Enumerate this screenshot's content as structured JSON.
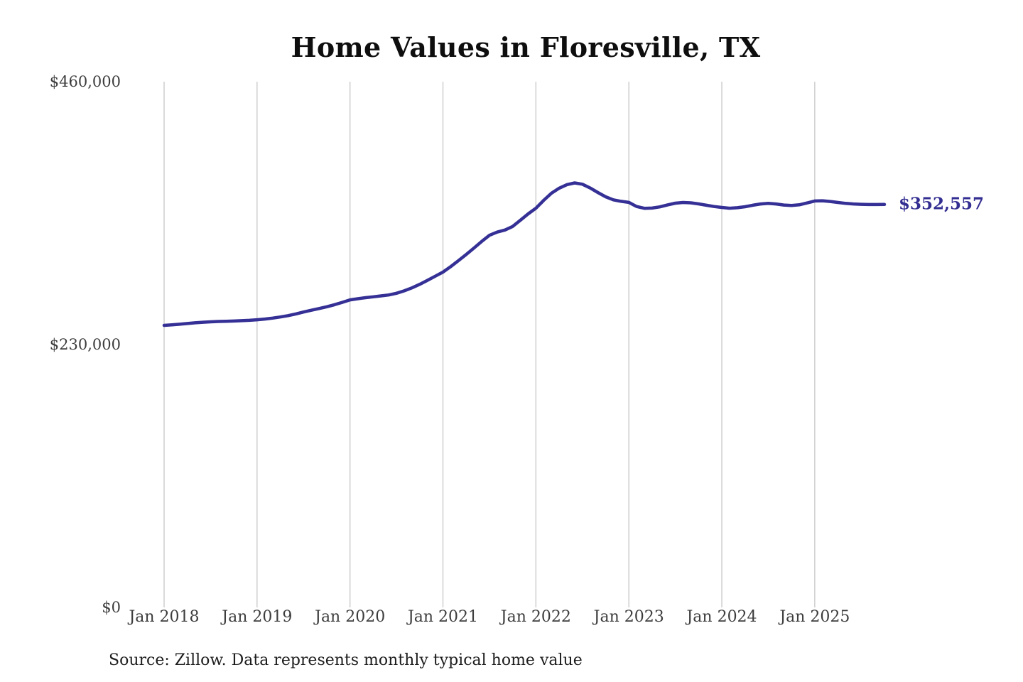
{
  "page": {
    "background": "#ffffff"
  },
  "chart_data": {
    "type": "line",
    "title": "Home Values in Floresville, TX",
    "source": "Source: Zillow. Data represents monthly typical home value",
    "x_frequency": "monthly",
    "x_start": "Jan 2018",
    "x_end": "Oct 2025",
    "x_tick_labels": [
      "Jan 2018",
      "Jan 2019",
      "Jan 2020",
      "Jan 2021",
      "Jan 2022",
      "Jan 2023",
      "Jan 2024",
      "Jan 2025"
    ],
    "y_tick_labels": [
      "$460,000",
      "$230,000",
      "$0"
    ],
    "y_ticks": [
      460000,
      230000,
      0
    ],
    "ylim": [
      0,
      460000
    ],
    "grid": "vertical-year-gridlines",
    "legend": "none",
    "line_color": "#353095",
    "grid_color": "#c7c7c7",
    "axis_text_color": "#3d3d3d",
    "final_value": 352557,
    "final_value_label": "$352,557",
    "values": [
      246800,
      247300,
      247800,
      248400,
      249000,
      249500,
      249900,
      250200,
      250400,
      250600,
      250900,
      251200,
      251700,
      252300,
      253100,
      254100,
      255300,
      256800,
      258500,
      260000,
      261500,
      263100,
      264900,
      266900,
      269100,
      270100,
      271000,
      271800,
      272600,
      273400,
      274900,
      277000,
      279600,
      282700,
      286200,
      289800,
      293400,
      298200,
      303400,
      308800,
      314400,
      320200,
      325600,
      328400,
      330200,
      333300,
      338800,
      344400,
      349300,
      356200,
      362400,
      366800,
      369900,
      371400,
      370300,
      367000,
      363000,
      359300,
      356600,
      355300,
      354400,
      350800,
      349200,
      349400,
      350500,
      352200,
      353700,
      354300,
      354000,
      353100,
      351900,
      350800,
      350000,
      349300,
      349700,
      350600,
      351900,
      353000,
      353500,
      353000,
      352100,
      351700,
      352300,
      353900,
      355600,
      355800,
      355200,
      354300,
      353500,
      353000,
      352700,
      352500,
      352500,
      352557
    ]
  }
}
